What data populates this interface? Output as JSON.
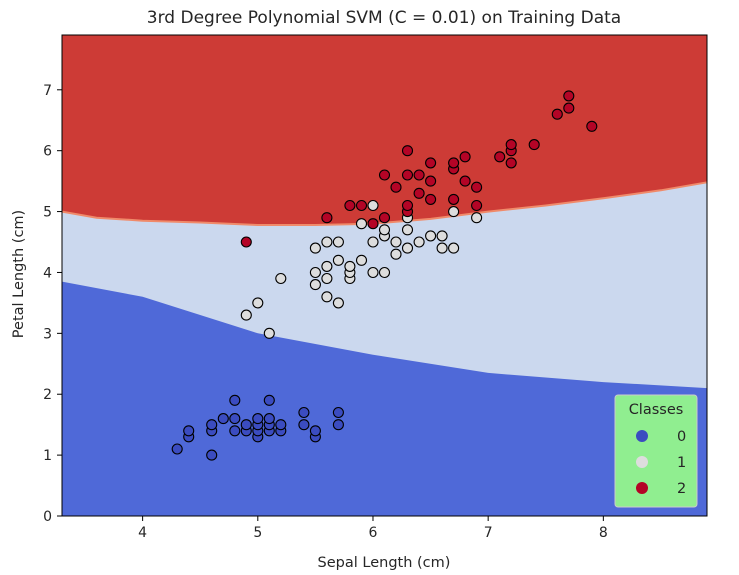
{
  "chart_data": {
    "type": "scatter",
    "title": "3rd Degree Polynomial SVM (C = 0.01) on Training Data",
    "xlabel": "Sepal Length (cm)",
    "ylabel": "Petal Length (cm)",
    "xlim": [
      3.3,
      8.9
    ],
    "ylim": [
      0,
      7.9
    ],
    "xticks": [
      4,
      5,
      6,
      7,
      8
    ],
    "yticks": [
      0,
      1,
      2,
      3,
      4,
      5,
      6,
      7
    ],
    "grid": false,
    "legend": {
      "title": "Classes",
      "placement": "lower right",
      "entries": [
        "0",
        "1",
        "2"
      ],
      "background": "#90ee90"
    },
    "colors": {
      "class0": "#3b4cc0",
      "class1": "#dddddd",
      "class2": "#b40426",
      "region0": "#4f69d8",
      "region1": "#cbd8ee",
      "region2": "#cd3b36"
    },
    "decision_boundaries": {
      "between_0_and_1": [
        [
          3.3,
          3.85
        ],
        [
          4.0,
          3.6
        ],
        [
          5.0,
          3.0
        ],
        [
          6.0,
          2.65
        ],
        [
          7.0,
          2.35
        ],
        [
          8.0,
          2.2
        ],
        [
          8.9,
          2.1
        ]
      ],
      "between_1_and_2": [
        [
          3.3,
          5.0
        ],
        [
          3.6,
          4.9
        ],
        [
          4.0,
          4.85
        ],
        [
          4.5,
          4.82
        ],
        [
          5.0,
          4.78
        ],
        [
          5.5,
          4.78
        ],
        [
          6.0,
          4.8
        ],
        [
          6.5,
          4.88
        ],
        [
          7.0,
          5.0
        ],
        [
          7.5,
          5.1
        ],
        [
          8.0,
          5.22
        ],
        [
          8.5,
          5.35
        ],
        [
          8.9,
          5.48
        ]
      ]
    },
    "series": [
      {
        "name": "0",
        "points": [
          [
            4.3,
            1.1
          ],
          [
            4.4,
            1.3
          ],
          [
            4.4,
            1.4
          ],
          [
            4.6,
            1.0
          ],
          [
            4.6,
            1.4
          ],
          [
            4.6,
            1.5
          ],
          [
            4.7,
            1.6
          ],
          [
            4.8,
            1.4
          ],
          [
            4.8,
            1.6
          ],
          [
            4.8,
            1.9
          ],
          [
            4.9,
            1.4
          ],
          [
            4.9,
            1.5
          ],
          [
            5.0,
            1.3
          ],
          [
            5.0,
            1.4
          ],
          [
            5.0,
            1.5
          ],
          [
            5.0,
            1.6
          ],
          [
            5.1,
            1.4
          ],
          [
            5.1,
            1.5
          ],
          [
            5.1,
            1.6
          ],
          [
            5.1,
            1.9
          ],
          [
            5.2,
            1.4
          ],
          [
            5.2,
            1.5
          ],
          [
            5.4,
            1.5
          ],
          [
            5.4,
            1.7
          ],
          [
            5.5,
            1.3
          ],
          [
            5.5,
            1.4
          ],
          [
            5.7,
            1.5
          ],
          [
            5.7,
            1.7
          ]
        ]
      },
      {
        "name": "1",
        "points": [
          [
            4.9,
            3.3
          ],
          [
            5.0,
            3.5
          ],
          [
            5.1,
            3.0
          ],
          [
            5.2,
            3.9
          ],
          [
            5.5,
            3.8
          ],
          [
            5.5,
            4.0
          ],
          [
            5.5,
            4.4
          ],
          [
            5.6,
            3.6
          ],
          [
            5.6,
            3.9
          ],
          [
            5.6,
            4.1
          ],
          [
            5.6,
            4.5
          ],
          [
            5.7,
            3.5
          ],
          [
            5.7,
            4.2
          ],
          [
            5.7,
            4.5
          ],
          [
            5.8,
            3.9
          ],
          [
            5.8,
            4.0
          ],
          [
            5.8,
            4.1
          ],
          [
            5.9,
            4.2
          ],
          [
            5.9,
            4.8
          ],
          [
            6.0,
            4.0
          ],
          [
            6.0,
            4.5
          ],
          [
            6.0,
            5.1
          ],
          [
            6.1,
            4.0
          ],
          [
            6.1,
            4.6
          ],
          [
            6.1,
            4.7
          ],
          [
            6.2,
            4.3
          ],
          [
            6.2,
            4.5
          ],
          [
            6.3,
            4.4
          ],
          [
            6.3,
            4.7
          ],
          [
            6.3,
            4.9
          ],
          [
            6.4,
            4.5
          ],
          [
            6.5,
            4.6
          ],
          [
            6.6,
            4.4
          ],
          [
            6.6,
            4.6
          ],
          [
            6.7,
            4.4
          ],
          [
            6.7,
            5.0
          ],
          [
            6.9,
            4.9
          ]
        ]
      },
      {
        "name": "2",
        "points": [
          [
            4.9,
            4.5
          ],
          [
            5.6,
            4.9
          ],
          [
            5.8,
            5.1
          ],
          [
            5.9,
            5.1
          ],
          [
            6.0,
            4.8
          ],
          [
            6.1,
            4.9
          ],
          [
            6.1,
            5.6
          ],
          [
            6.2,
            5.4
          ],
          [
            6.3,
            5.0
          ],
          [
            6.3,
            5.1
          ],
          [
            6.3,
            5.6
          ],
          [
            6.3,
            6.0
          ],
          [
            6.4,
            5.3
          ],
          [
            6.4,
            5.6
          ],
          [
            6.5,
            5.2
          ],
          [
            6.5,
            5.5
          ],
          [
            6.5,
            5.8
          ],
          [
            6.7,
            5.2
          ],
          [
            6.7,
            5.7
          ],
          [
            6.7,
            5.8
          ],
          [
            6.8,
            5.5
          ],
          [
            6.8,
            5.9
          ],
          [
            6.9,
            5.1
          ],
          [
            6.9,
            5.4
          ],
          [
            7.1,
            5.9
          ],
          [
            7.2,
            5.8
          ],
          [
            7.2,
            6.0
          ],
          [
            7.2,
            6.1
          ],
          [
            7.4,
            6.1
          ],
          [
            7.6,
            6.6
          ],
          [
            7.7,
            6.7
          ],
          [
            7.7,
            6.9
          ],
          [
            7.9,
            6.4
          ]
        ]
      }
    ]
  }
}
